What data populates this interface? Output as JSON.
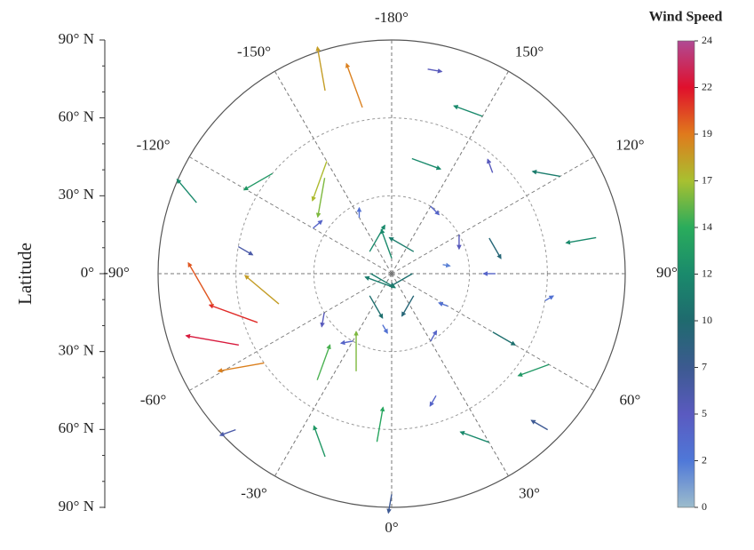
{
  "chart_data": {
    "type": "polar-vector",
    "ylabel": "Latitude",
    "colorbar_title": "Wind Speed",
    "ylim": [
      0,
      90
    ],
    "yticks": [
      {
        "value": 90,
        "label": "90° N"
      },
      {
        "value": 60,
        "label": "60° N"
      },
      {
        "value": 30,
        "label": "30° N"
      },
      {
        "value": 0,
        "label": "0°"
      },
      {
        "value": 30,
        "label": "30° N"
      },
      {
        "value": 60,
        "label": "60° N"
      },
      {
        "value": 90,
        "label": "90° N"
      }
    ],
    "lonticks": [
      {
        "value": -180,
        "label": "-180°"
      },
      {
        "value": 150,
        "label": "150°"
      },
      {
        "value": 120,
        "label": "120°"
      },
      {
        "value": 90,
        "label": "90°"
      },
      {
        "value": 60,
        "label": "60°"
      },
      {
        "value": 30,
        "label": "30°"
      },
      {
        "value": 0,
        "label": "0°"
      },
      {
        "value": -30,
        "label": "-30°"
      },
      {
        "value": -60,
        "label": "-60°"
      },
      {
        "value": -90,
        "label": "-90°"
      },
      {
        "value": -120,
        "label": "-120°"
      },
      {
        "value": -150,
        "label": "-150°"
      }
    ],
    "clim": [
      0,
      24
    ],
    "cticks": [
      {
        "value": 24,
        "label": "24"
      },
      {
        "value": 21.6,
        "label": "22"
      },
      {
        "value": 19.2,
        "label": "19"
      },
      {
        "value": 16.8,
        "label": "17"
      },
      {
        "value": 14.4,
        "label": "14"
      },
      {
        "value": 12,
        "label": "12"
      },
      {
        "value": 9.6,
        "label": "10"
      },
      {
        "value": 7.2,
        "label": "7"
      },
      {
        "value": 4.8,
        "label": "5"
      },
      {
        "value": 2.4,
        "label": "2"
      },
      {
        "value": 0,
        "label": "0"
      }
    ],
    "colormap": [
      "#9cbccc",
      "#4f78d8",
      "#5a5ac0",
      "#3c5a90",
      "#1f6a6e",
      "#1a8a6c",
      "#2aac5c",
      "#a8c030",
      "#e07a1c",
      "#e0102c",
      "#b04a94"
    ],
    "grid": true,
    "vectors": {
      "lon": [
        0,
        90,
        -90,
        180,
        45,
        -45,
        135,
        -135,
        -70,
        -65,
        -80,
        -55,
        -75,
        -170,
        -160,
        -150,
        -145,
        -20,
        -35,
        150,
        120,
        100,
        60,
        30,
        -20,
        -110,
        -130,
        170,
        -5,
        60,
        110,
        30,
        60,
        90,
        120,
        150,
        -30,
        -60,
        -120,
        -150,
        170,
        80,
        20,
        -100,
        135,
        45,
        -45,
        0,
        -10,
        100
      ],
      "lat": [
        5,
        8,
        8,
        6,
        12,
        12,
        12,
        12,
        55,
        65,
        70,
        60,
        45,
        65,
        75,
        50,
        45,
        40,
        50,
        70,
        75,
        80,
        70,
        75,
        75,
        80,
        60,
        45,
        65,
        45,
        40,
        30,
        25,
        40,
        30,
        30,
        30,
        30,
        35,
        25,
        80,
        60,
        50,
        60,
        55,
        85,
        85,
        85,
        20,
        20
      ],
      "speed": [
        11,
        10,
        11,
        12,
        9,
        10,
        11,
        12,
        21,
        22,
        20,
        19,
        18,
        19,
        18,
        17,
        16,
        16,
        15,
        12,
        11,
        12,
        13,
        12,
        13,
        12,
        13,
        12,
        14,
        10,
        9,
        4,
        3,
        4,
        5,
        4,
        4,
        5,
        4,
        3,
        5,
        3,
        4,
        6,
        5,
        7,
        6,
        7,
        3,
        2
      ],
      "dir": [
        200,
        150,
        30,
        250,
        120,
        60,
        210,
        300,
        200,
        190,
        240,
        170,
        220,
        250,
        260,
        110,
        100,
        270,
        290,
        200,
        190,
        170,
        160,
        200,
        250,
        230,
        150,
        20,
        280,
        30,
        60,
        300,
        200,
        180,
        90,
        45,
        170,
        100,
        320,
        270,
        10,
        330,
        120,
        30,
        250,
        210,
        160,
        100,
        60,
        10
      ]
    }
  }
}
